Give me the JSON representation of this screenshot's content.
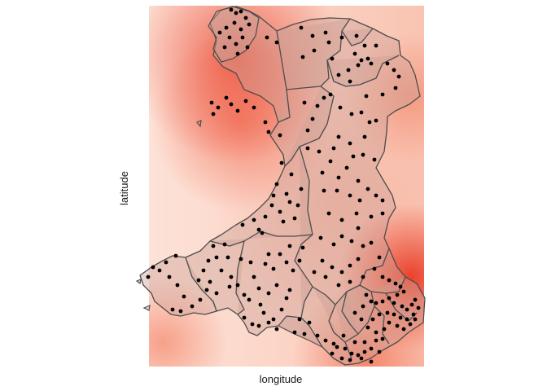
{
  "chart_data": {
    "type": "map",
    "title": "",
    "xlabel": "longitude",
    "ylabel": "latitude",
    "x_ticks_shown": false,
    "y_ticks_shown": false,
    "grid": false,
    "legend": "none",
    "colors": {
      "heat_low": "#fee6dc",
      "heat_mid": "#f6a08a",
      "heat_high": "#e8331c",
      "boundary": "#4d4d4d",
      "region_fill": "#cda096",
      "points": "#000000"
    },
    "layers": [
      "density heatmap",
      "region boundaries",
      "point locations"
    ]
  }
}
